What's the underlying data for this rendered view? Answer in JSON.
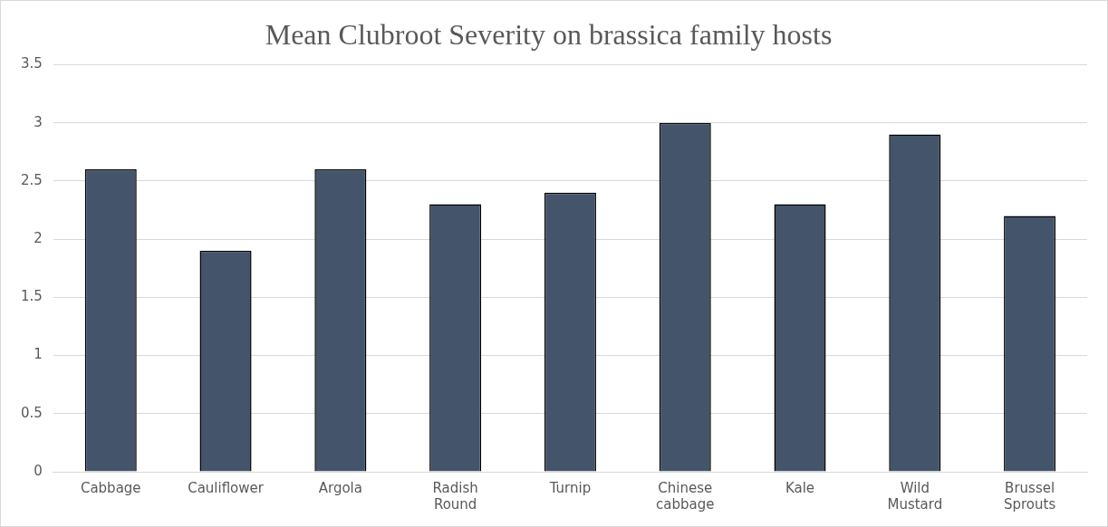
{
  "chart_data": {
    "type": "bar",
    "title": "Mean Clubroot Severity on brassica family hosts",
    "categories": [
      "Cabbage",
      "Cauliflower",
      "Argola",
      "Radish Round",
      "Turnip",
      "Chinese cabbage",
      "Kale",
      "Wild Mustard",
      "Brussel Sprouts"
    ],
    "values": [
      2.6,
      1.9,
      2.6,
      2.3,
      2.4,
      3.0,
      2.3,
      2.9,
      2.2
    ],
    "color": "#44546a",
    "ylim": [
      0,
      3.5
    ],
    "yticks": [
      0,
      0.5,
      1,
      1.5,
      2,
      2.5,
      3,
      3.5
    ],
    "grid": "y",
    "legend": false
  }
}
